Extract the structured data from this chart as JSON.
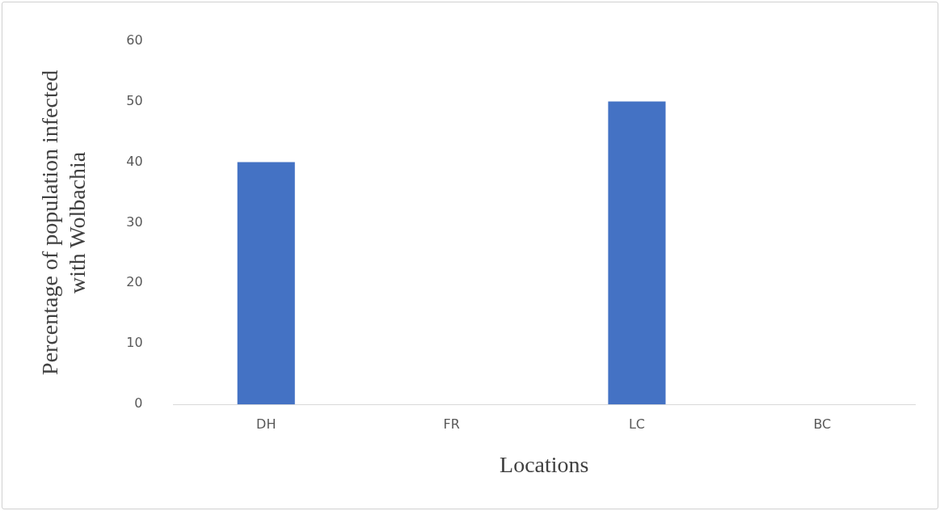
{
  "chart_data": {
    "type": "bar",
    "categories": [
      "DH",
      "FR",
      "LC",
      "BC"
    ],
    "values": [
      40,
      0,
      50,
      0
    ],
    "color": "#4472c4",
    "ylim": [
      0,
      60
    ],
    "yticks": [
      0,
      10,
      20,
      30,
      40,
      50,
      60
    ],
    "grid": false,
    "legend": false,
    "xlabel": "Locations",
    "ylabel": "Percentage of population infected with Wolbachia"
  }
}
